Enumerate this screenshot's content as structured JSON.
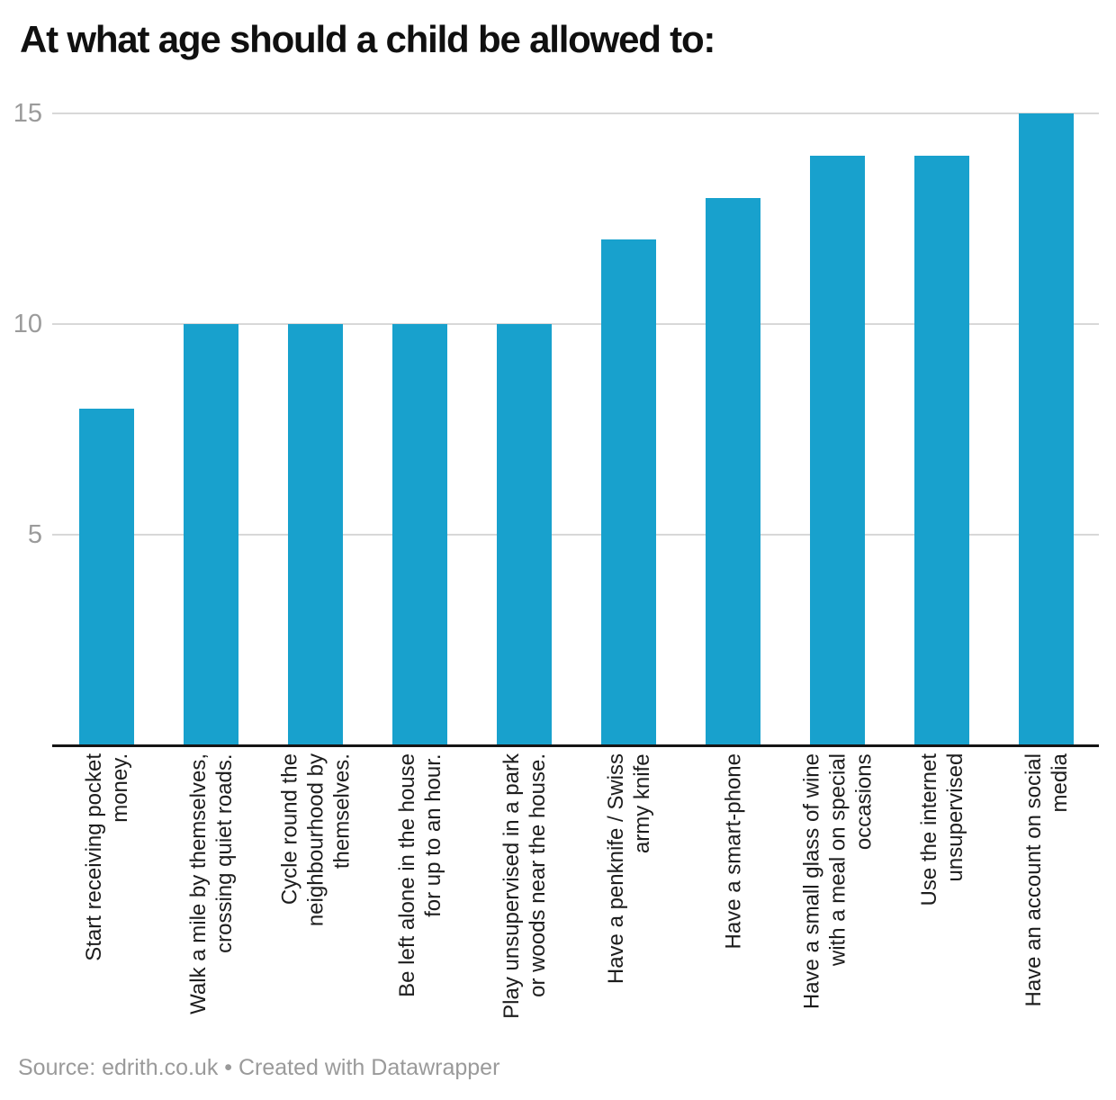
{
  "header": {
    "title": "At what age should a child be allowed to:"
  },
  "footer": {
    "text": "Source: edrith.co.uk • Created with Datawrapper"
  },
  "chart_data": {
    "type": "bar",
    "title": "At what age should a child be allowed to:",
    "categories": [
      "Start receiving pocket\nmoney.",
      "Walk a mile by themselves,\ncrossing quiet roads.",
      "Cycle round the\nneighbourhood by\nthemselves.",
      "Be left alone in the house\nfor up to an hour.",
      "Play unsupervised in a park\nor woods near the house.",
      "Have a penknife / Swiss\narmy knife",
      "Have a smart-phone",
      "Have a small glass of wine\nwith a meal on special\noccasions",
      "Use the internet\nunsupervised",
      "Have an account on social\nmedia"
    ],
    "values": [
      8,
      10,
      10,
      10,
      10,
      12,
      13,
      14,
      14,
      15
    ],
    "xlabel": "",
    "ylabel": "",
    "yticks": [
      5,
      10,
      15
    ],
    "ylim": [
      0,
      15
    ],
    "grid": "horizontal",
    "legend": "none",
    "bar_color": "#18a1cd",
    "gridline_color": "#d8d8d8",
    "axis_color": "#151515",
    "tick_label_color": "#9b9b9b",
    "source": "edrith.co.uk",
    "credit": "Created with Datawrapper"
  }
}
